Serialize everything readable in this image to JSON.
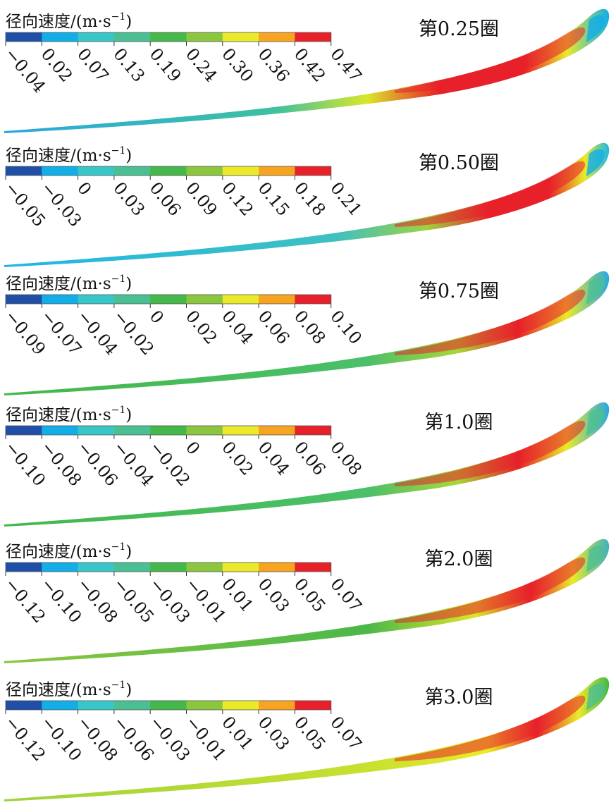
{
  "figure": {
    "panels": [
      {
        "label": "第0.25圈",
        "legend_title": "径向速度/(m·s",
        "legend_exp": "−1",
        "legend_close": ")",
        "ticks": [
          "−0.04",
          "0.02",
          "0.07",
          "0.13",
          "0.19",
          "0.24",
          "0.30",
          "0.36",
          "0.42",
          "0.47"
        ]
      },
      {
        "label": "第0.50圈",
        "legend_title": "径向速度/(m·s",
        "legend_exp": "−1",
        "legend_close": ")",
        "ticks": [
          "−0.05",
          "−0.03",
          "0",
          "0.03",
          "0.06",
          "0.09",
          "0.12",
          "0.15",
          "0.18",
          "0.21"
        ]
      },
      {
        "label": "第0.75圈",
        "legend_title": "径向速度/(m·s",
        "legend_exp": "−1",
        "legend_close": ")",
        "ticks": [
          "−0.09",
          "−0.07",
          "−0.04",
          "−0.02",
          "0",
          "0.02",
          "0.04",
          "0.06",
          "0.08",
          "0.10"
        ]
      },
      {
        "label": "第1.0圈",
        "legend_title": "径向速度/(m·s",
        "legend_exp": "−1",
        "legend_close": ")",
        "ticks": [
          "−0.10",
          "−0.08",
          "−0.06",
          "−0.04",
          "−0.02",
          "0",
          "0.02",
          "0.04",
          "0.06",
          "0.08"
        ]
      },
      {
        "label": "第2.0圈",
        "legend_title": "径向速度/(m·s",
        "legend_exp": "−1",
        "legend_close": ")",
        "ticks": [
          "−0.12",
          "−0.10",
          "−0.08",
          "−0.05",
          "−0.03",
          "−0.01",
          "0.01",
          "0.03",
          "0.05",
          "0.07"
        ]
      },
      {
        "label": "第3.0圈",
        "legend_title": "径向速度/(m·s",
        "legend_exp": "−1",
        "legend_close": ")",
        "ticks": [
          "−0.12",
          "−0.10",
          "−0.08",
          "−0.06",
          "−0.03",
          "−0.01",
          "0.01",
          "0.03",
          "0.05",
          "0.07"
        ]
      }
    ],
    "colormap": [
      "#1f4fa6",
      "#11aee8",
      "#39c6c9",
      "#4bbf94",
      "#44b84a",
      "#8cc63f",
      "#eaea2a",
      "#f7a420",
      "#e8202a"
    ],
    "colors": {
      "background": "#ffffff",
      "text": "#111111"
    }
  }
}
